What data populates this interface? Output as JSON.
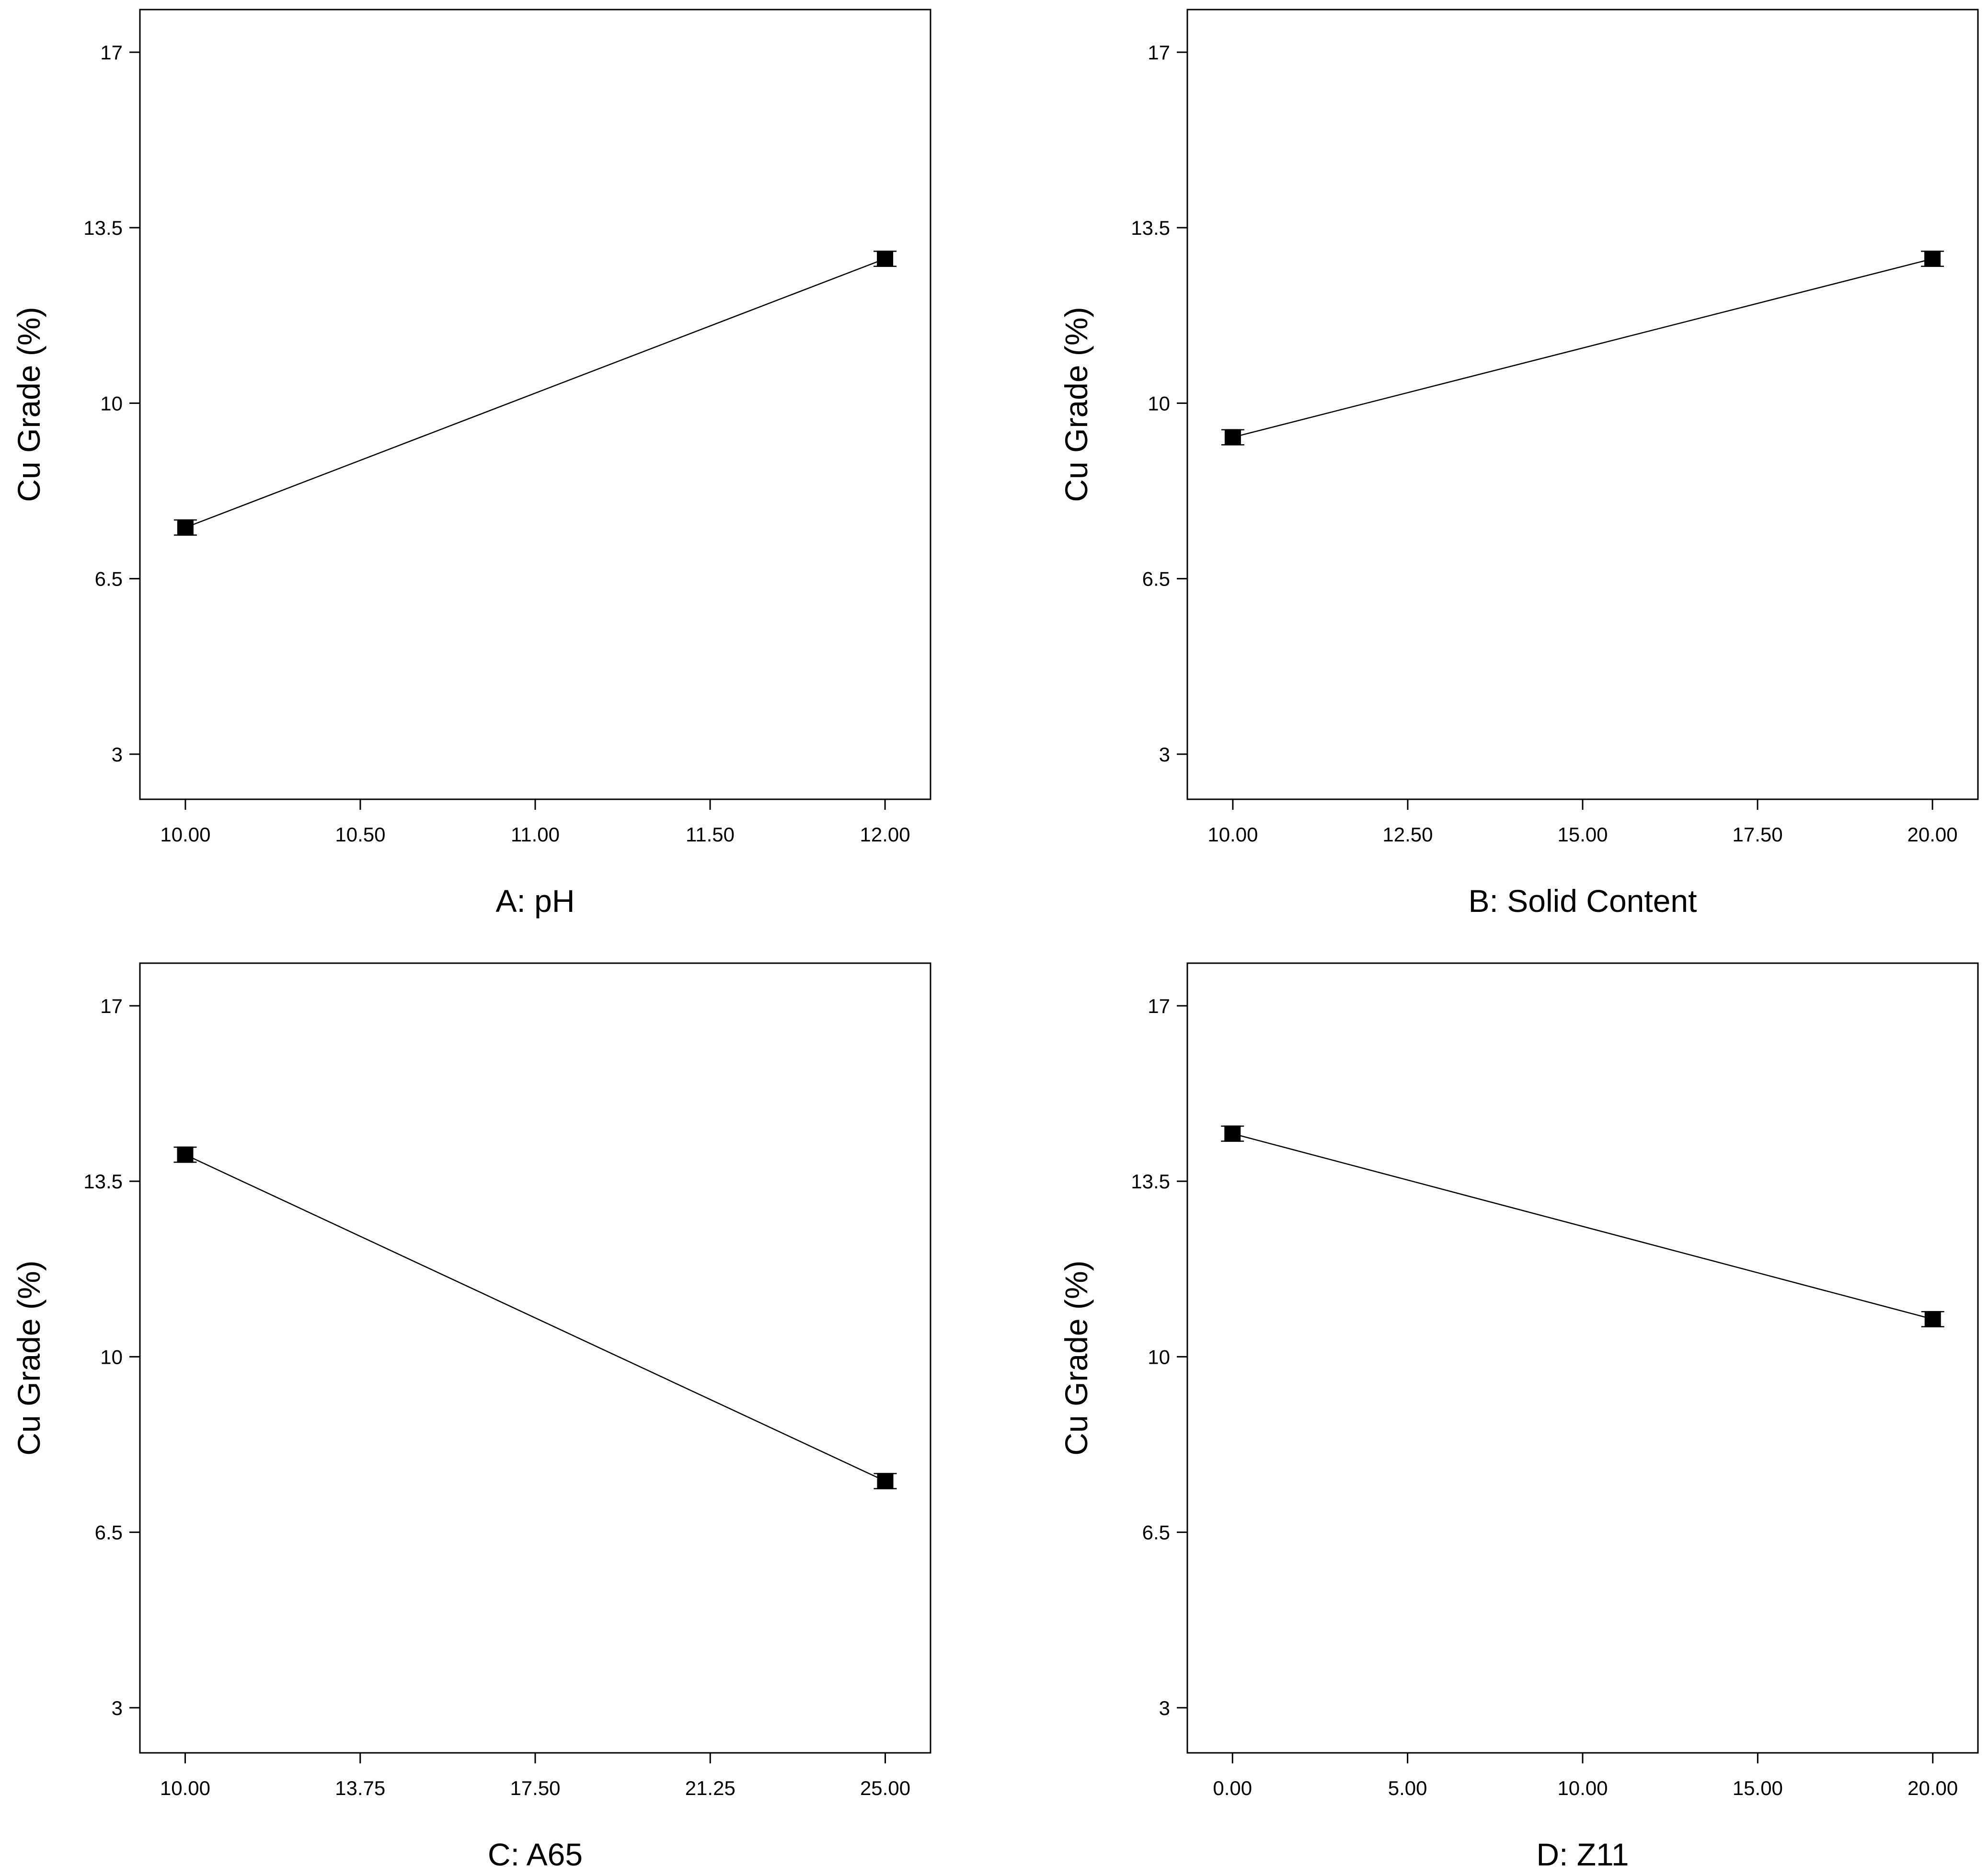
{
  "chart_data": [
    {
      "type": "line",
      "panel": "top-left",
      "xlabel": "A: pH",
      "ylabel": "Cu Grade (%)",
      "xlim": [
        9.87,
        12.13
      ],
      "ylim": [
        2.1,
        17.85
      ],
      "xticks": [
        "10.00",
        "10.50",
        "11.00",
        "11.50",
        "12.00"
      ],
      "xtick_values": [
        10.0,
        10.5,
        11.0,
        11.5,
        12.0
      ],
      "yticks": [
        "3",
        "6.5",
        "10",
        "13.5",
        "17"
      ],
      "ytick_values": [
        3,
        6.5,
        10,
        13.5,
        17
      ],
      "x": [
        10.0,
        12.0
      ],
      "y": [
        7.52,
        12.88
      ],
      "error": [
        0.15,
        0.15
      ]
    },
    {
      "type": "line",
      "panel": "top-right",
      "xlabel": "B: Solid Content",
      "ylabel": "Cu Grade (%)",
      "xlim": [
        9.35,
        20.65
      ],
      "ylim": [
        2.1,
        17.85
      ],
      "xticks": [
        "10.00",
        "12.50",
        "15.00",
        "17.50",
        "20.00"
      ],
      "xtick_values": [
        10.0,
        12.5,
        15.0,
        17.5,
        20.0
      ],
      "yticks": [
        "3",
        "6.5",
        "10",
        "13.5",
        "17"
      ],
      "ytick_values": [
        3,
        6.5,
        10,
        13.5,
        17
      ],
      "x": [
        10.0,
        20.0
      ],
      "y": [
        9.32,
        12.88
      ],
      "error": [
        0.15,
        0.15
      ]
    },
    {
      "type": "line",
      "panel": "bottom-left",
      "xlabel": "C: A65",
      "ylabel": "Cu Grade (%)",
      "xlim": [
        9.03,
        25.97
      ],
      "ylim": [
        2.1,
        17.85
      ],
      "xticks": [
        "10.00",
        "13.75",
        "17.50",
        "21.25",
        "25.00"
      ],
      "xtick_values": [
        10.0,
        13.75,
        17.5,
        21.25,
        25.0
      ],
      "yticks": [
        "3",
        "6.5",
        "10",
        "13.5",
        "17"
      ],
      "ytick_values": [
        3,
        6.5,
        10,
        13.5,
        17
      ],
      "x": [
        10.0,
        25.0
      ],
      "y": [
        14.03,
        7.52
      ],
      "error": [
        0.15,
        0.15
      ]
    },
    {
      "type": "line",
      "panel": "bottom-right",
      "xlabel": "D: Z11",
      "ylabel": "Cu Grade (%)",
      "xlim": [
        -1.29,
        21.29
      ],
      "ylim": [
        2.1,
        17.85
      ],
      "xticks": [
        "0.00",
        "5.00",
        "10.00",
        "15.00",
        "20.00"
      ],
      "xtick_values": [
        0.0,
        5.0,
        10.0,
        15.0,
        20.0
      ],
      "yticks": [
        "3",
        "6.5",
        "10",
        "13.5",
        "17"
      ],
      "ytick_values": [
        3,
        6.5,
        10,
        13.5,
        17
      ],
      "x": [
        0.0,
        20.0
      ],
      "y": [
        14.45,
        10.75
      ],
      "error": [
        0.15,
        0.15
      ]
    }
  ]
}
